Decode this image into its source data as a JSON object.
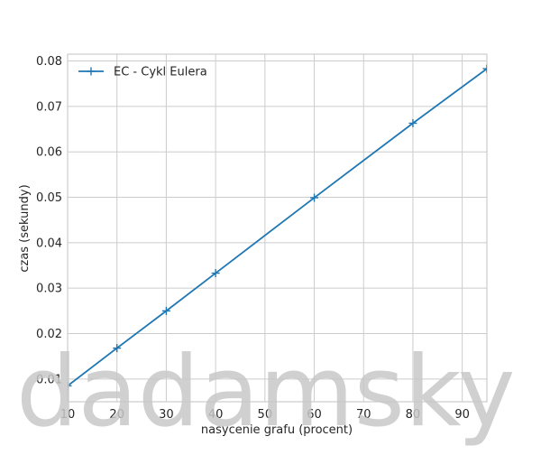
{
  "chart_data": {
    "type": "line",
    "title": "",
    "xlabel": "nasycenie grafu (procent)",
    "ylabel": "czas (sekundy)",
    "xlim": [
      10,
      95
    ],
    "ylim": [
      0.005,
      0.0815
    ],
    "x_ticks": [
      10,
      20,
      30,
      40,
      50,
      60,
      70,
      80,
      90
    ],
    "y_ticks": [
      0.01,
      0.02,
      0.03,
      0.04,
      0.05,
      0.06,
      0.07,
      0.08
    ],
    "grid": true,
    "legend_position": "top-left",
    "series": [
      {
        "name": "EC - Cykl Eulera",
        "color": "#1f77b4",
        "marker": "plus",
        "x": [
          10,
          20,
          30,
          40,
          60,
          80,
          95
        ],
        "y": [
          0.0085,
          0.0168,
          0.025,
          0.0333,
          0.0499,
          0.0663,
          0.0783
        ]
      }
    ]
  },
  "watermark": "dadamsky"
}
